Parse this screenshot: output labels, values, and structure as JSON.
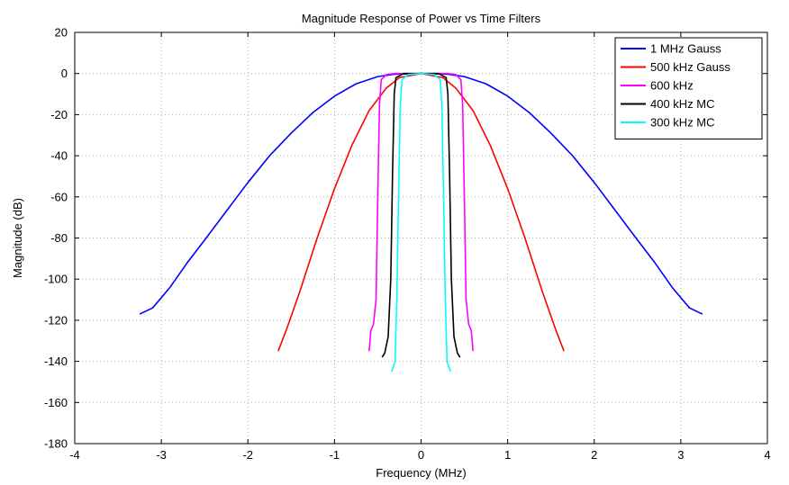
{
  "chart_data": {
    "type": "line",
    "title": "Magnitude Response of Power vs Time Filters",
    "xlabel": "Frequency (MHz)",
    "ylabel": "Magnitude (dB)",
    "xlim": [
      -4,
      4
    ],
    "ylim": [
      -180,
      20
    ],
    "xticks": [
      -4,
      -3,
      -2,
      -1,
      0,
      1,
      2,
      3,
      4
    ],
    "yticks": [
      20,
      0,
      -20,
      -40,
      -60,
      -80,
      -100,
      -120,
      -140,
      -160,
      -180
    ],
    "grid": true,
    "legend": "top-right",
    "series": [
      {
        "name": "1 MHz Gauss",
        "color": "#0000ff",
        "points": [
          [
            -3.25,
            -117
          ],
          [
            -3.1,
            -114
          ],
          [
            -2.9,
            -104
          ],
          [
            -2.7,
            -92
          ],
          [
            -2.5,
            -81
          ],
          [
            -2.25,
            -67
          ],
          [
            -2.0,
            -53
          ],
          [
            -1.75,
            -40
          ],
          [
            -1.5,
            -29
          ],
          [
            -1.25,
            -19
          ],
          [
            -1.0,
            -11
          ],
          [
            -0.75,
            -5
          ],
          [
            -0.5,
            -1.5
          ],
          [
            -0.3,
            -0.3
          ],
          [
            0,
            0
          ],
          [
            0.3,
            -0.3
          ],
          [
            0.5,
            -1.5
          ],
          [
            0.75,
            -5
          ],
          [
            1.0,
            -11
          ],
          [
            1.25,
            -19
          ],
          [
            1.5,
            -29
          ],
          [
            1.75,
            -40
          ],
          [
            2.0,
            -53
          ],
          [
            2.25,
            -67
          ],
          [
            2.5,
            -81
          ],
          [
            2.7,
            -92
          ],
          [
            2.9,
            -104
          ],
          [
            3.1,
            -114
          ],
          [
            3.25,
            -117
          ]
        ]
      },
      {
        "name": "500 kHz Gauss",
        "color": "#ff0000",
        "points": [
          [
            -1.65,
            -135
          ],
          [
            -1.55,
            -124
          ],
          [
            -1.4,
            -106
          ],
          [
            -1.2,
            -80
          ],
          [
            -1.0,
            -56
          ],
          [
            -0.8,
            -35
          ],
          [
            -0.6,
            -18
          ],
          [
            -0.4,
            -7
          ],
          [
            -0.25,
            -2
          ],
          [
            0,
            0
          ],
          [
            0.25,
            -2
          ],
          [
            0.4,
            -7
          ],
          [
            0.6,
            -18
          ],
          [
            0.8,
            -35
          ],
          [
            1.0,
            -56
          ],
          [
            1.2,
            -80
          ],
          [
            1.4,
            -106
          ],
          [
            1.55,
            -124
          ],
          [
            1.65,
            -135
          ]
        ]
      },
      {
        "name": "600 kHz",
        "color": "#ff00ff",
        "points": [
          [
            -0.6,
            -135
          ],
          [
            -0.58,
            -125
          ],
          [
            -0.55,
            -122
          ],
          [
            -0.52,
            -110
          ],
          [
            -0.5,
            -60
          ],
          [
            -0.48,
            -15
          ],
          [
            -0.46,
            -3
          ],
          [
            -0.4,
            -0.5
          ],
          [
            -0.3,
            0
          ],
          [
            0,
            0
          ],
          [
            0.3,
            0
          ],
          [
            0.4,
            -0.5
          ],
          [
            0.46,
            -3
          ],
          [
            0.48,
            -15
          ],
          [
            0.5,
            -60
          ],
          [
            0.52,
            -110
          ],
          [
            0.55,
            -122
          ],
          [
            0.58,
            -125
          ],
          [
            0.6,
            -135
          ]
        ]
      },
      {
        "name": "400 kHz MC",
        "color": "#000000",
        "points": [
          [
            -0.45,
            -138
          ],
          [
            -0.42,
            -136
          ],
          [
            -0.38,
            -128
          ],
          [
            -0.35,
            -100
          ],
          [
            -0.33,
            -50
          ],
          [
            -0.31,
            -10
          ],
          [
            -0.29,
            -2
          ],
          [
            -0.2,
            0
          ],
          [
            0,
            0
          ],
          [
            0.2,
            0
          ],
          [
            0.29,
            -2
          ],
          [
            0.31,
            -10
          ],
          [
            0.33,
            -50
          ],
          [
            0.35,
            -100
          ],
          [
            0.38,
            -128
          ],
          [
            0.42,
            -136
          ],
          [
            0.45,
            -138
          ]
        ]
      },
      {
        "name": "300 kHz MC",
        "color": "#00ffff",
        "points": [
          [
            -0.34,
            -145
          ],
          [
            -0.3,
            -140
          ],
          [
            -0.28,
            -110
          ],
          [
            -0.26,
            -60
          ],
          [
            -0.24,
            -15
          ],
          [
            -0.22,
            -3
          ],
          [
            -0.15,
            -0.5
          ],
          [
            0,
            0
          ],
          [
            0.15,
            -0.5
          ],
          [
            0.22,
            -3
          ],
          [
            0.24,
            -15
          ],
          [
            0.26,
            -60
          ],
          [
            0.28,
            -110
          ],
          [
            0.3,
            -140
          ],
          [
            0.34,
            -145
          ]
        ]
      }
    ]
  }
}
